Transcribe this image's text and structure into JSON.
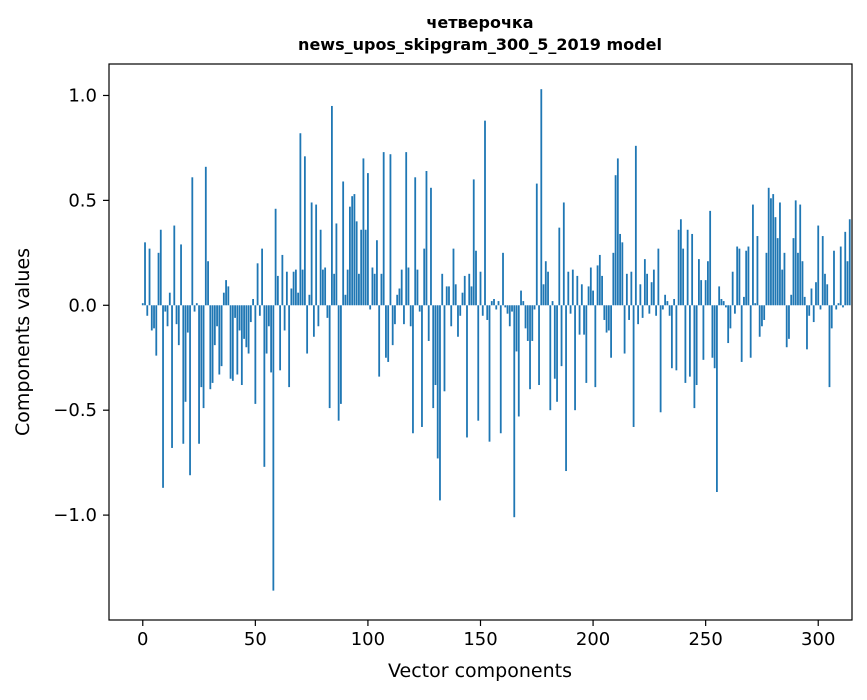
{
  "chart_data": {
    "type": "bar",
    "title": "четверочка",
    "subtitle": "news_upos_skipgram_300_5_2019 model",
    "xlabel": "Vector components",
    "ylabel": "Components values",
    "xlim": [
      -15,
      315
    ],
    "ylim": [
      -1.5,
      1.15
    ],
    "xticks": [
      0,
      50,
      100,
      150,
      200,
      250,
      300
    ],
    "yticks": [
      -1.0,
      -0.5,
      0.0,
      0.5,
      1.0
    ],
    "xtick_labels": [
      "0",
      "50",
      "100",
      "150",
      "200",
      "250",
      "300"
    ],
    "ytick_labels": [
      "−1.0",
      "−0.5",
      "0.0",
      "0.5",
      "1.0"
    ],
    "grid": false,
    "bar_color": "#1f77b4",
    "series": [
      {
        "name": "components",
        "values": [
          0.01,
          0.3,
          -0.05,
          0.27,
          -0.12,
          -0.11,
          -0.24,
          0.25,
          0.36,
          -0.87,
          -0.03,
          -0.1,
          0.06,
          -0.68,
          0.38,
          -0.09,
          -0.19,
          0.29,
          -0.66,
          -0.46,
          -0.13,
          -0.81,
          0.61,
          -0.03,
          0.01,
          -0.66,
          -0.39,
          -0.49,
          0.66,
          0.21,
          -0.4,
          -0.37,
          -0.19,
          -0.1,
          -0.33,
          -0.29,
          0.06,
          0.12,
          0.09,
          -0.35,
          -0.36,
          -0.06,
          -0.33,
          -0.12,
          -0.38,
          -0.16,
          -0.2,
          -0.23,
          -0.08,
          0.03,
          -0.47,
          0.2,
          -0.05,
          0.27,
          -0.77,
          -0.23,
          -0.1,
          -0.32,
          -1.36,
          0.46,
          0.14,
          -0.31,
          0.24,
          -0.12,
          0.16,
          -0.39,
          0.08,
          0.16,
          0.17,
          0.06,
          0.82,
          0.17,
          0.71,
          -0.23,
          0.05,
          0.49,
          -0.15,
          0.48,
          -0.1,
          0.36,
          0.17,
          0.18,
          -0.06,
          -0.49,
          0.95,
          0.15,
          0.39,
          -0.55,
          -0.47,
          0.59,
          0.05,
          0.17,
          0.47,
          0.52,
          0.53,
          0.4,
          0.15,
          0.36,
          0.7,
          0.36,
          0.63,
          -0.02,
          0.18,
          0.15,
          0.31,
          -0.34,
          0.15,
          0.73,
          -0.25,
          -0.27,
          0.72,
          -0.19,
          -0.09,
          0.05,
          0.08,
          0.17,
          -0.09,
          0.73,
          0.18,
          -0.1,
          -0.61,
          0.61,
          0.17,
          -0.03,
          -0.58,
          0.27,
          0.64,
          -0.17,
          0.56,
          -0.49,
          -0.38,
          -0.73,
          -0.93,
          0.15,
          -0.41,
          0.09,
          0.09,
          -0.1,
          0.27,
          0.1,
          -0.15,
          -0.05,
          0.06,
          0.14,
          -0.63,
          0.15,
          0.09,
          0.6,
          0.26,
          -0.55,
          0.16,
          -0.05,
          0.88,
          -0.07,
          -0.65,
          0.02,
          0.03,
          -0.02,
          0.02,
          -0.61,
          0.25,
          -0.01,
          -0.04,
          -0.1,
          -0.03,
          -1.01,
          -0.22,
          -0.53,
          0.07,
          0.02,
          -0.11,
          -0.17,
          -0.4,
          -0.17,
          -0.02,
          0.58,
          -0.38,
          1.03,
          0.1,
          0.21,
          0.16,
          -0.5,
          0.02,
          -0.35,
          -0.46,
          0.37,
          -0.29,
          0.49,
          -0.79,
          0.16,
          -0.04,
          0.17,
          -0.5,
          0.14,
          -0.14,
          0.1,
          -0.14,
          -0.37,
          0.09,
          0.18,
          0.07,
          -0.39,
          0.19,
          0.24,
          0.14,
          -0.07,
          -0.13,
          -0.12,
          -0.25,
          0.25,
          0.62,
          0.7,
          0.34,
          0.3,
          -0.23,
          0.15,
          -0.07,
          0.16,
          -0.58,
          0.76,
          -0.09,
          0.1,
          -0.06,
          0.22,
          0.15,
          -0.04,
          0.11,
          0.17,
          -0.05,
          0.27,
          -0.51,
          -0.02,
          0.05,
          0.02,
          -0.05,
          -0.3,
          0.03,
          -0.31,
          0.36,
          0.41,
          0.27,
          -0.37,
          0.36,
          -0.34,
          0.34,
          -0.49,
          -0.38,
          0.22,
          0.12,
          -0.26,
          0.12,
          0.21,
          0.45,
          -0.25,
          -0.3,
          -0.89,
          0.09,
          0.03,
          0.02,
          -0.01,
          -0.18,
          -0.11,
          0.16,
          -0.04,
          0.28,
          0.27,
          -0.27,
          0.04,
          0.26,
          0.28,
          -0.25,
          0.48,
          0.01,
          0.33,
          -0.15,
          -0.1,
          -0.07,
          0.25,
          0.56,
          0.51,
          0.53,
          0.42,
          0.32,
          0.49,
          0.17,
          0.25,
          -0.2,
          -0.16,
          0.05,
          0.32,
          0.5,
          0.25,
          0.48,
          0.21,
          0.04,
          -0.21,
          -0.05,
          0.08,
          -0.08,
          0.11,
          0.38,
          -0.02,
          0.33,
          0.15,
          0.1,
          -0.39,
          -0.11,
          0.26,
          -0.02,
          0.01,
          0.28,
          -0.01,
          0.35,
          0.21,
          0.41
        ]
      }
    ]
  }
}
